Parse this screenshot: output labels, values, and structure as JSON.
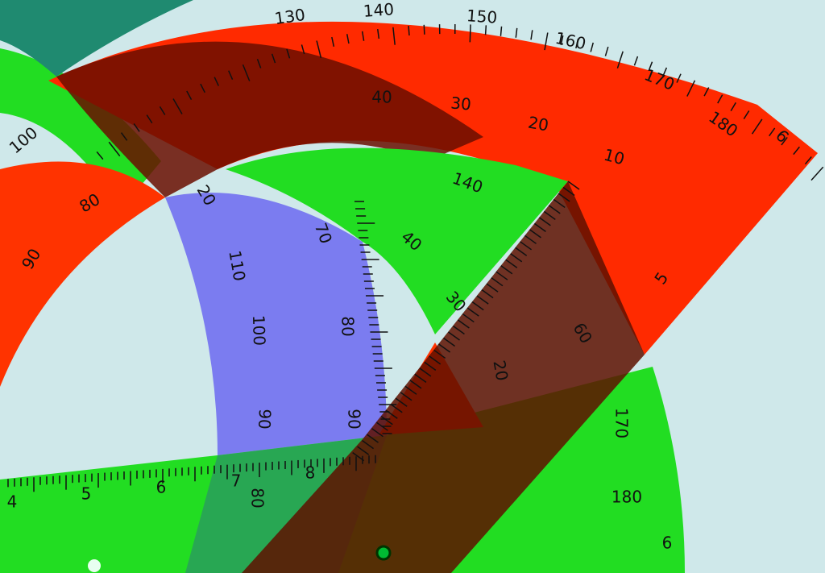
{
  "labels": [
    "130",
    "140",
    "150",
    "160",
    "170",
    "180",
    "6",
    "10",
    "20",
    "30",
    "40",
    "80",
    "90",
    "100",
    "20",
    "110",
    "100",
    "90",
    "70",
    "80",
    "90",
    "140",
    "40",
    "30",
    "5",
    "170",
    "180",
    "6",
    "4",
    "5",
    "6",
    "7",
    "8",
    "80",
    "60",
    "20"
  ]
}
